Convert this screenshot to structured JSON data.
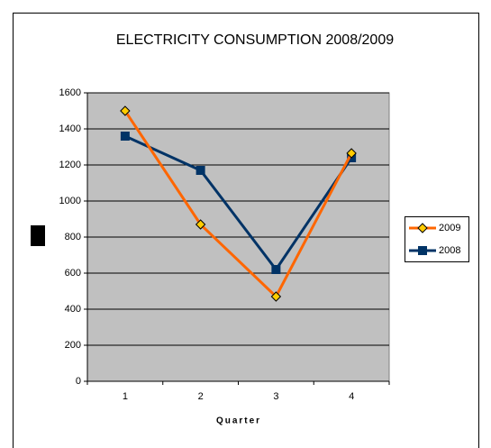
{
  "chart_data": {
    "type": "line",
    "title": "ELECTRICITY CONSUMPTION 2008/2009",
    "x_label": "Quarter",
    "categories": [
      "1",
      "2",
      "3",
      "4"
    ],
    "series": [
      {
        "name": "2009",
        "color": "#ff6600",
        "marker": "diamond",
        "values": [
          1500,
          870,
          470,
          1265
        ]
      },
      {
        "name": "2008",
        "color": "#003366",
        "marker": "square",
        "values": [
          1360,
          1170,
          620,
          1240
        ]
      }
    ],
    "ylim": [
      0,
      1600
    ],
    "yticks": [
      0,
      200,
      400,
      600,
      800,
      1000,
      1200,
      1400,
      1600
    ],
    "grid": true,
    "legend": "right"
  }
}
